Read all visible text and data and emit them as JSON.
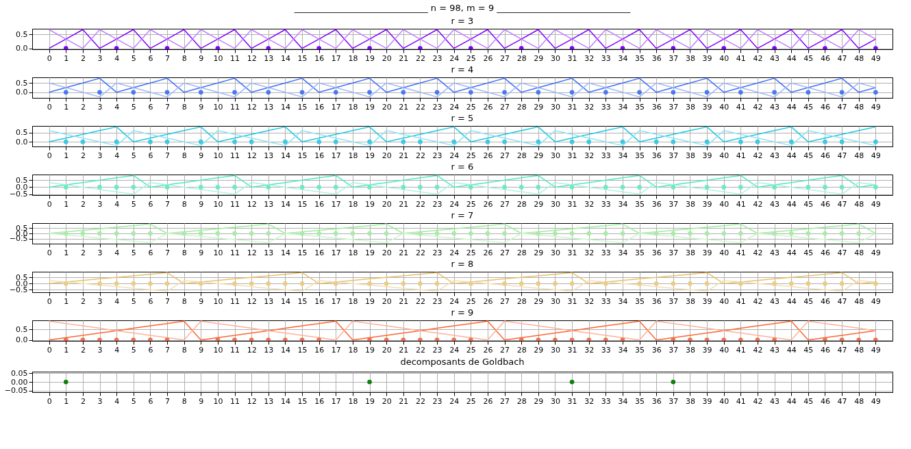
{
  "chart_data": [
    {
      "type": "line",
      "title": "______________________________ n = 98, m = 9 ______________________________",
      "subtitle": "r = 3",
      "grid": true,
      "x": [
        0,
        1,
        2,
        3,
        4,
        5,
        6,
        7,
        8,
        9,
        10,
        11,
        12,
        13,
        14,
        15,
        16,
        17,
        18,
        19,
        20,
        21,
        22,
        23,
        24,
        25,
        26,
        27,
        28,
        29,
        30,
        31,
        32,
        33,
        34,
        35,
        36,
        37,
        38,
        39,
        40,
        41,
        42,
        43,
        44,
        45,
        46,
        47,
        48,
        49
      ],
      "xlim": [
        -1,
        50
      ],
      "xticks": [
        0,
        1,
        2,
        3,
        4,
        5,
        6,
        7,
        8,
        9,
        10,
        11,
        12,
        13,
        14,
        15,
        16,
        17,
        18,
        19,
        20,
        21,
        22,
        23,
        24,
        25,
        26,
        27,
        28,
        29,
        30,
        31,
        32,
        33,
        34,
        35,
        36,
        37,
        38,
        39,
        40,
        41,
        42,
        43,
        44,
        45,
        46,
        47,
        48,
        49
      ],
      "ylim": [
        -0.033,
        0.7
      ],
      "yticks": [
        {
          "value": 0,
          "label": "0.0"
        },
        {
          "value": 0.5,
          "label": "0.5"
        }
      ],
      "series": [
        {
          "type": "line",
          "color": "#8000ff",
          "values": [
            0,
            0.33,
            0.67,
            0,
            0.33,
            0.67,
            0,
            0.33,
            0.67,
            0,
            0.33,
            0.67,
            0,
            0.33,
            0.67,
            0,
            0.33,
            0.67,
            0,
            0.33,
            0.67,
            0,
            0.33,
            0.67,
            0,
            0.33,
            0.67,
            0,
            0.33,
            0.67,
            0,
            0.33,
            0.67,
            0,
            0.33,
            0.67,
            0,
            0.33,
            0.67,
            0,
            0.33,
            0.67,
            0,
            0.33,
            0.67,
            0,
            0.33,
            0.67,
            0,
            0.33
          ]
        },
        {
          "type": "line",
          "color": "#c080ff",
          "values": [
            0.67,
            0.33,
            0,
            0.67,
            0.33,
            0,
            0.67,
            0.33,
            0,
            0.67,
            0.33,
            0,
            0.67,
            0.33,
            0,
            0.67,
            0.33,
            0,
            0.67,
            0.33,
            0,
            0.67,
            0.33,
            0,
            0.67,
            0.33,
            0,
            0.67,
            0.33,
            0,
            0.67,
            0.33,
            0,
            0.67,
            0.33,
            0,
            0.67,
            0.33,
            0,
            0.67,
            0.33,
            0,
            0.67,
            0.33,
            0,
            0.67,
            0.33,
            0,
            0.67,
            0.33
          ]
        },
        {
          "type": "scatter",
          "marker": "circle",
          "color": "#8000ff",
          "x": [
            1,
            4,
            7,
            10,
            13,
            16,
            19,
            22,
            25,
            28,
            31,
            34,
            37,
            40,
            43,
            46,
            49
          ],
          "values": [
            0,
            0,
            0,
            0,
            0,
            0,
            0,
            0,
            0,
            0,
            0,
            0,
            0,
            0,
            0,
            0,
            0
          ]
        }
      ]
    },
    {
      "type": "line",
      "title": "r = 4",
      "grid": true,
      "x": [
        0,
        1,
        2,
        3,
        4,
        5,
        6,
        7,
        8,
        9,
        10,
        11,
        12,
        13,
        14,
        15,
        16,
        17,
        18,
        19,
        20,
        21,
        22,
        23,
        24,
        25,
        26,
        27,
        28,
        29,
        30,
        31,
        32,
        33,
        34,
        35,
        36,
        37,
        38,
        39,
        40,
        41,
        42,
        43,
        44,
        45,
        46,
        47,
        48,
        49
      ],
      "xlim": [
        -1,
        50
      ],
      "xticks": [
        0,
        1,
        2,
        3,
        4,
        5,
        6,
        7,
        8,
        9,
        10,
        11,
        12,
        13,
        14,
        15,
        16,
        17,
        18,
        19,
        20,
        21,
        22,
        23,
        24,
        25,
        26,
        27,
        28,
        29,
        30,
        31,
        32,
        33,
        34,
        35,
        36,
        37,
        38,
        39,
        40,
        41,
        42,
        43,
        44,
        45,
        46,
        47,
        48,
        49
      ],
      "ylim": [
        -0.3,
        0.8
      ],
      "yticks": [
        {
          "value": 0,
          "label": "0.0"
        },
        {
          "value": 0.5,
          "label": "0.5"
        }
      ],
      "series": [
        {
          "type": "line",
          "color": "#4070f8",
          "values": [
            0,
            0.25,
            0.5,
            0.75,
            0,
            0.25,
            0.5,
            0.75,
            0,
            0.25,
            0.5,
            0.75,
            0,
            0.25,
            0.5,
            0.75,
            0,
            0.25,
            0.5,
            0.75,
            0,
            0.25,
            0.5,
            0.75,
            0,
            0.25,
            0.5,
            0.75,
            0,
            0.25,
            0.5,
            0.75,
            0,
            0.25,
            0.5,
            0.75,
            0,
            0.25,
            0.5,
            0.75,
            0,
            0.25,
            0.5,
            0.75,
            0,
            0.25,
            0.5,
            0.75,
            0,
            0.25
          ]
        },
        {
          "type": "line",
          "color": "#a0b8fb",
          "values": [
            0.5,
            0.25,
            0,
            -0.25,
            0.5,
            0.25,
            0,
            -0.25,
            0.5,
            0.25,
            0,
            -0.25,
            0.5,
            0.25,
            0,
            -0.25,
            0.5,
            0.25,
            0,
            -0.25,
            0.5,
            0.25,
            0,
            -0.25,
            0.5,
            0.25,
            0,
            -0.25,
            0.5,
            0.25,
            0,
            -0.25,
            0.5,
            0.25,
            0,
            -0.25,
            0.5,
            0.25,
            0,
            -0.25,
            0.5,
            0.25,
            0,
            -0.25,
            0.5,
            0.25,
            0,
            -0.25,
            0.5,
            0.25
          ]
        },
        {
          "type": "scatter",
          "marker": "circle",
          "color": "#4a78f0",
          "x": [
            1,
            3,
            5,
            7,
            9,
            11,
            13,
            15,
            17,
            19,
            21,
            23,
            25,
            27,
            29,
            31,
            33,
            35,
            37,
            39,
            41,
            43,
            45,
            47,
            49
          ],
          "values": [
            0,
            0,
            0,
            0,
            0,
            0,
            0,
            0,
            0,
            0,
            0,
            0,
            0,
            0,
            0,
            0,
            0,
            0,
            0,
            0,
            0,
            0,
            0,
            0,
            0
          ]
        }
      ]
    },
    {
      "type": "line",
      "title": "r = 5",
      "grid": true,
      "x": [
        0,
        1,
        2,
        3,
        4,
        5,
        6,
        7,
        8,
        9,
        10,
        11,
        12,
        13,
        14,
        15,
        16,
        17,
        18,
        19,
        20,
        21,
        22,
        23,
        24,
        25,
        26,
        27,
        28,
        29,
        30,
        31,
        32,
        33,
        34,
        35,
        36,
        37,
        38,
        39,
        40,
        41,
        42,
        43,
        44,
        45,
        46,
        47,
        48,
        49
      ],
      "xlim": [
        -1,
        50
      ],
      "xticks": [
        0,
        1,
        2,
        3,
        4,
        5,
        6,
        7,
        8,
        9,
        10,
        11,
        12,
        13,
        14,
        15,
        16,
        17,
        18,
        19,
        20,
        21,
        22,
        23,
        24,
        25,
        26,
        27,
        28,
        29,
        30,
        31,
        32,
        33,
        34,
        35,
        36,
        37,
        38,
        39,
        40,
        41,
        42,
        43,
        44,
        45,
        46,
        47,
        48,
        49
      ],
      "ylim": [
        -0.25,
        0.85
      ],
      "yticks": [
        {
          "value": 0,
          "label": "0.0"
        },
        {
          "value": 0.5,
          "label": "0.5"
        }
      ],
      "series": [
        {
          "type": "line",
          "color": "#1ec8e0",
          "values": [
            0,
            0.2,
            0.4,
            0.6,
            0.8,
            0,
            0.2,
            0.4,
            0.6,
            0.8,
            0,
            0.2,
            0.4,
            0.6,
            0.8,
            0,
            0.2,
            0.4,
            0.6,
            0.8,
            0,
            0.2,
            0.4,
            0.6,
            0.8,
            0,
            0.2,
            0.4,
            0.6,
            0.8,
            0,
            0.2,
            0.4,
            0.6,
            0.8,
            0,
            0.2,
            0.4,
            0.6,
            0.8,
            0,
            0.2,
            0.4,
            0.6,
            0.8,
            0,
            0.2,
            0.4,
            0.6,
            0.8
          ]
        },
        {
          "type": "line",
          "color": "#90e4f0",
          "values": [
            0.6,
            0.4,
            0.2,
            0,
            -0.2,
            0.6,
            0.4,
            0.2,
            0,
            -0.2,
            0.6,
            0.4,
            0.2,
            0,
            -0.2,
            0.6,
            0.4,
            0.2,
            0,
            -0.2,
            0.6,
            0.4,
            0.2,
            0,
            -0.2,
            0.6,
            0.4,
            0.2,
            0,
            -0.2,
            0.6,
            0.4,
            0.2,
            0,
            -0.2,
            0.6,
            0.4,
            0.2,
            0,
            -0.2,
            0.6,
            0.4,
            0.2,
            0,
            -0.2,
            0.6,
            0.4,
            0.2,
            0,
            -0.2
          ]
        },
        {
          "type": "scatter",
          "marker": "circle",
          "color": "#40c8e0",
          "x": [
            1,
            2,
            4,
            6,
            7,
            9,
            11,
            12,
            14,
            16,
            17,
            19,
            21,
            22,
            24,
            26,
            27,
            29,
            31,
            32,
            34,
            36,
            37,
            39,
            41,
            42,
            44,
            46,
            47,
            49
          ],
          "values": [
            0,
            0,
            0,
            0,
            0,
            0,
            0,
            0,
            0,
            0,
            0,
            0,
            0,
            0,
            0,
            0,
            0,
            0,
            0,
            0,
            0,
            0,
            0,
            0,
            0,
            0,
            0,
            0,
            0,
            0
          ]
        }
      ]
    },
    {
      "type": "line",
      "title": "r = 6",
      "grid": true,
      "x": [
        0,
        1,
        2,
        3,
        4,
        5,
        6,
        7,
        8,
        9,
        10,
        11,
        12,
        13,
        14,
        15,
        16,
        17,
        18,
        19,
        20,
        21,
        22,
        23,
        24,
        25,
        26,
        27,
        28,
        29,
        30,
        31,
        32,
        33,
        34,
        35,
        36,
        37,
        38,
        39,
        40,
        41,
        42,
        43,
        44,
        45,
        46,
        47,
        48,
        49
      ],
      "xlim": [
        -1,
        50
      ],
      "xticks": [
        0,
        1,
        2,
        3,
        4,
        5,
        6,
        7,
        8,
        9,
        10,
        11,
        12,
        13,
        14,
        15,
        16,
        17,
        18,
        19,
        20,
        21,
        22,
        23,
        24,
        25,
        26,
        27,
        28,
        29,
        30,
        31,
        32,
        33,
        34,
        35,
        36,
        37,
        38,
        39,
        40,
        41,
        42,
        43,
        44,
        45,
        46,
        47,
        48,
        49
      ],
      "ylim": [
        -0.567,
        0.9
      ],
      "yticks": [
        {
          "value": -0.5,
          "label": "−0.5"
        },
        {
          "value": 0,
          "label": "0.0"
        },
        {
          "value": 0.5,
          "label": "0.5"
        }
      ],
      "series": [
        {
          "type": "line",
          "color": "#50e8c0",
          "values": [
            0,
            0.17,
            0.33,
            0.5,
            0.67,
            0.83,
            0,
            0.17,
            0.33,
            0.5,
            0.67,
            0.83,
            0,
            0.17,
            0.33,
            0.5,
            0.67,
            0.83,
            0,
            0.17,
            0.33,
            0.5,
            0.67,
            0.83,
            0,
            0.17,
            0.33,
            0.5,
            0.67,
            0.83,
            0,
            0.17,
            0.33,
            0.5,
            0.67,
            0.83,
            0,
            0.17,
            0.33,
            0.5,
            0.67,
            0.83,
            0,
            0.17,
            0.33,
            0.5,
            0.67,
            0.83,
            0,
            0.17
          ]
        },
        {
          "type": "line",
          "color": "#a8f4e0",
          "values": [
            0.33,
            0.17,
            0,
            -0.17,
            -0.33,
            -0.5,
            0.33,
            0.17,
            0,
            -0.17,
            -0.33,
            -0.5,
            0.33,
            0.17,
            0,
            -0.17,
            -0.33,
            -0.5,
            0.33,
            0.17,
            0,
            -0.17,
            -0.33,
            -0.5,
            0.33,
            0.17,
            0,
            -0.17,
            -0.33,
            -0.5,
            0.33,
            0.17,
            0,
            -0.17,
            -0.33,
            -0.5,
            0.33,
            0.17,
            0,
            -0.17,
            -0.33,
            -0.5,
            0.33,
            0.17,
            0,
            -0.17,
            -0.33,
            -0.5,
            0.33,
            0.17
          ]
        },
        {
          "type": "scatter",
          "marker": "circle",
          "color": "#70e8c8",
          "x": [
            1,
            3,
            4,
            5,
            7,
            9,
            10,
            11,
            13,
            15,
            16,
            17,
            19,
            21,
            22,
            23,
            25,
            27,
            28,
            29,
            31,
            33,
            34,
            35,
            37,
            39,
            40,
            41,
            43,
            45,
            46,
            47,
            49
          ],
          "values": [
            0,
            0,
            0,
            0,
            0,
            0,
            0,
            0,
            0,
            0,
            0,
            0,
            0,
            0,
            0,
            0,
            0,
            0,
            0,
            0,
            0,
            0,
            0,
            0,
            0,
            0,
            0,
            0,
            0,
            0,
            0,
            0,
            0
          ]
        }
      ]
    },
    {
      "type": "line",
      "title": "r = 7",
      "grid": true,
      "x": [
        0,
        1,
        2,
        3,
        4,
        5,
        6,
        7,
        8,
        9,
        10,
        11,
        12,
        13,
        14,
        15,
        16,
        17,
        18,
        19,
        20,
        21,
        22,
        23,
        24,
        25,
        26,
        27,
        28,
        29,
        30,
        31,
        32,
        33,
        34,
        35,
        36,
        37,
        38,
        39,
        40,
        41,
        42,
        43,
        44,
        45,
        46,
        47,
        48,
        49
      ],
      "xlim": [
        -1,
        50
      ],
      "xticks": [
        0,
        1,
        2,
        3,
        4,
        5,
        6,
        7,
        8,
        9,
        10,
        11,
        12,
        13,
        14,
        15,
        16,
        17,
        18,
        19,
        20,
        21,
        22,
        23,
        24,
        25,
        26,
        27,
        28,
        29,
        30,
        31,
        32,
        33,
        34,
        35,
        36,
        37,
        38,
        39,
        40,
        41,
        42,
        43,
        44,
        45,
        46,
        47,
        48,
        49
      ],
      "ylim": [
        -0.943,
        0.943
      ],
      "yticks": [
        {
          "value": -0.5,
          "label": "−0.5"
        },
        {
          "value": 0,
          "label": "0.0"
        },
        {
          "value": 0.5,
          "label": "0.5"
        }
      ],
      "series": [
        {
          "type": "line",
          "color": "#98ee98",
          "values": [
            0,
            0.14,
            0.29,
            0.43,
            0.57,
            0.71,
            0.86,
            0,
            0.14,
            0.29,
            0.43,
            0.57,
            0.71,
            0.86,
            0,
            0.14,
            0.29,
            0.43,
            0.57,
            0.71,
            0.86,
            0,
            0.14,
            0.29,
            0.43,
            0.57,
            0.71,
            0.86,
            0,
            0.14,
            0.29,
            0.43,
            0.57,
            0.71,
            0.86,
            0,
            0.14,
            0.29,
            0.43,
            0.57,
            0.71,
            0.86,
            0,
            0.14,
            0.29,
            0.43,
            0.57,
            0.71,
            0.86,
            0
          ]
        },
        {
          "type": "line",
          "color": "#ccf8cc",
          "values": [
            0,
            -0.14,
            -0.29,
            -0.43,
            -0.57,
            -0.71,
            -0.86,
            0,
            -0.14,
            -0.29,
            -0.43,
            -0.57,
            -0.71,
            -0.86,
            0,
            -0.14,
            -0.29,
            -0.43,
            -0.57,
            -0.71,
            -0.86,
            0,
            -0.14,
            -0.29,
            -0.43,
            -0.57,
            -0.71,
            -0.86,
            0,
            -0.14,
            -0.29,
            -0.43,
            -0.57,
            -0.71,
            -0.86,
            0,
            -0.14,
            -0.29,
            -0.43,
            -0.57,
            -0.71,
            -0.86,
            0,
            -0.14,
            -0.29,
            -0.43,
            -0.57,
            -0.71,
            -0.86,
            0
          ]
        },
        {
          "type": "scatter",
          "marker": "circle",
          "color": "#a8eca8",
          "x": [
            1,
            2,
            3,
            4,
            5,
            6,
            8,
            9,
            10,
            11,
            12,
            13,
            15,
            16,
            17,
            18,
            19,
            20,
            22,
            23,
            24,
            25,
            26,
            27,
            29,
            30,
            31,
            32,
            33,
            34,
            36,
            37,
            38,
            39,
            40,
            41,
            43,
            44,
            45,
            46,
            47,
            48
          ],
          "values": [
            0,
            0,
            0,
            0,
            0,
            0,
            0,
            0,
            0,
            0,
            0,
            0,
            0,
            0,
            0,
            0,
            0,
            0,
            0,
            0,
            0,
            0,
            0,
            0,
            0,
            0,
            0,
            0,
            0,
            0,
            0,
            0,
            0,
            0,
            0,
            0,
            0,
            0,
            0,
            0,
            0,
            0
          ]
        }
      ]
    },
    {
      "type": "line",
      "title": "r = 8",
      "grid": true,
      "x": [
        0,
        1,
        2,
        3,
        4,
        5,
        6,
        7,
        8,
        9,
        10,
        11,
        12,
        13,
        14,
        15,
        16,
        17,
        18,
        19,
        20,
        21,
        22,
        23,
        24,
        25,
        26,
        27,
        28,
        29,
        30,
        31,
        32,
        33,
        34,
        35,
        36,
        37,
        38,
        39,
        40,
        41,
        42,
        43,
        44,
        45,
        46,
        47,
        48,
        49
      ],
      "xlim": [
        -1,
        50
      ],
      "xticks": [
        0,
        1,
        2,
        3,
        4,
        5,
        6,
        7,
        8,
        9,
        10,
        11,
        12,
        13,
        14,
        15,
        16,
        17,
        18,
        19,
        20,
        21,
        22,
        23,
        24,
        25,
        26,
        27,
        28,
        29,
        30,
        31,
        32,
        33,
        34,
        35,
        36,
        37,
        38,
        39,
        40,
        41,
        42,
        43,
        44,
        45,
        46,
        47,
        48,
        49
      ],
      "ylim": [
        -0.7,
        0.95
      ],
      "yticks": [
        {
          "value": -0.5,
          "label": "−0.5"
        },
        {
          "value": 0,
          "label": "0.0"
        },
        {
          "value": 0.5,
          "label": "0.5"
        }
      ],
      "series": [
        {
          "type": "line",
          "color": "#e8c068",
          "values": [
            0,
            0.12,
            0.25,
            0.38,
            0.5,
            0.62,
            0.75,
            0.88,
            0,
            0.12,
            0.25,
            0.38,
            0.5,
            0.62,
            0.75,
            0.88,
            0,
            0.12,
            0.25,
            0.38,
            0.5,
            0.62,
            0.75,
            0.88,
            0,
            0.12,
            0.25,
            0.38,
            0.5,
            0.62,
            0.75,
            0.88,
            0,
            0.12,
            0.25,
            0.38,
            0.5,
            0.62,
            0.75,
            0.88,
            0,
            0.12,
            0.25,
            0.38,
            0.5,
            0.62,
            0.75,
            0.88,
            0,
            0.12
          ]
        },
        {
          "type": "line",
          "color": "#f4e0b4",
          "values": [
            0.25,
            0.12,
            0,
            -0.12,
            -0.25,
            -0.38,
            -0.5,
            -0.62,
            0.25,
            0.12,
            0,
            -0.12,
            -0.25,
            -0.38,
            -0.5,
            -0.62,
            0.25,
            0.12,
            0,
            -0.12,
            -0.25,
            -0.38,
            -0.5,
            -0.62,
            0.25,
            0.12,
            0,
            -0.12,
            -0.25,
            -0.38,
            -0.5,
            -0.62,
            0.25,
            0.12,
            0,
            -0.12,
            -0.25,
            -0.38,
            -0.5,
            -0.62,
            0.25,
            0.12,
            0,
            -0.12,
            -0.25,
            -0.38,
            -0.5,
            -0.62,
            0.25,
            0.12
          ]
        },
        {
          "type": "scatter",
          "marker": "circle",
          "color": "#eccc80",
          "x": [
            1,
            3,
            4,
            5,
            6,
            7,
            9,
            11,
            12,
            13,
            14,
            15,
            17,
            19,
            20,
            21,
            22,
            23,
            25,
            27,
            28,
            29,
            30,
            31,
            33,
            35,
            36,
            37,
            38,
            39,
            41,
            43,
            44,
            45,
            46,
            47,
            49
          ],
          "values": [
            0,
            0,
            0,
            0,
            0,
            0,
            0,
            0,
            0,
            0,
            0,
            0,
            0,
            0,
            0,
            0,
            0,
            0,
            0,
            0,
            0,
            0,
            0,
            0,
            0,
            0,
            0,
            0,
            0,
            0,
            0,
            0,
            0,
            0,
            0,
            0,
            0
          ]
        }
      ]
    },
    {
      "type": "line",
      "title": "r = 9",
      "grid": true,
      "x": [
        0,
        1,
        2,
        3,
        4,
        5,
        6,
        7,
        8,
        9,
        10,
        11,
        12,
        13,
        14,
        15,
        16,
        17,
        18,
        19,
        20,
        21,
        22,
        23,
        24,
        25,
        26,
        27,
        28,
        29,
        30,
        31,
        32,
        33,
        34,
        35,
        36,
        37,
        38,
        39,
        40,
        41,
        42,
        43,
        44,
        45,
        46,
        47,
        48,
        49
      ],
      "xlim": [
        -1,
        50
      ],
      "xticks": [
        0,
        1,
        2,
        3,
        4,
        5,
        6,
        7,
        8,
        9,
        10,
        11,
        12,
        13,
        14,
        15,
        16,
        17,
        18,
        19,
        20,
        21,
        22,
        23,
        24,
        25,
        26,
        27,
        28,
        29,
        30,
        31,
        32,
        33,
        34,
        35,
        36,
        37,
        38,
        39,
        40,
        41,
        42,
        43,
        44,
        45,
        46,
        47,
        48,
        49
      ],
      "ylim": [
        -0.044,
        0.933
      ],
      "yticks": [
        {
          "value": 0,
          "label": "0.0"
        },
        {
          "value": 0.5,
          "label": "0.5"
        }
      ],
      "series": [
        {
          "type": "line",
          "color": "#ff6430",
          "values": [
            0,
            0.11,
            0.22,
            0.33,
            0.44,
            0.56,
            0.67,
            0.78,
            0.89,
            0,
            0.11,
            0.22,
            0.33,
            0.44,
            0.56,
            0.67,
            0.78,
            0.89,
            0,
            0.11,
            0.22,
            0.33,
            0.44,
            0.56,
            0.67,
            0.78,
            0.89,
            0,
            0.11,
            0.22,
            0.33,
            0.44,
            0.56,
            0.67,
            0.78,
            0.89,
            0,
            0.11,
            0.22,
            0.33,
            0.44,
            0.56,
            0.67,
            0.78,
            0.89,
            0,
            0.11,
            0.22,
            0.33,
            0.44
          ]
        },
        {
          "type": "line",
          "color": "#ffb098",
          "values": [
            0.89,
            0.78,
            0.67,
            0.56,
            0.44,
            0.33,
            0.22,
            0.11,
            0,
            0.89,
            0.78,
            0.67,
            0.56,
            0.44,
            0.33,
            0.22,
            0.11,
            0,
            0.89,
            0.78,
            0.67,
            0.56,
            0.44,
            0.33,
            0.22,
            0.11,
            0,
            0.89,
            0.78,
            0.67,
            0.56,
            0.44,
            0.33,
            0.22,
            0.11,
            0,
            0.89,
            0.78,
            0.67,
            0.56,
            0.44,
            0.33,
            0.22,
            0.11,
            0,
            0.89,
            0.78,
            0.67,
            0.56,
            0.44
          ]
        },
        {
          "type": "scatter",
          "marker": "circle",
          "color": "#f07050",
          "x": [
            1,
            2,
            3,
            4,
            5,
            6,
            7,
            10,
            11,
            12,
            13,
            14,
            15,
            16,
            19,
            20,
            21,
            22,
            23,
            24,
            25,
            28,
            29,
            30,
            31,
            32,
            33,
            34,
            37,
            38,
            39,
            40,
            41,
            42,
            43,
            46,
            47,
            48,
            49
          ],
          "values": [
            0,
            0,
            0,
            0,
            0,
            0,
            0,
            0,
            0,
            0,
            0,
            0,
            0,
            0,
            0,
            0,
            0,
            0,
            0,
            0,
            0,
            0,
            0,
            0,
            0,
            0,
            0,
            0,
            0,
            0,
            0,
            0,
            0,
            0,
            0,
            0,
            0,
            0,
            0
          ]
        }
      ]
    },
    {
      "type": "scatter",
      "title": "decomposants de Goldbach",
      "grid": true,
      "marker": "circle",
      "x": [
        1,
        19,
        31,
        37
      ],
      "values": [
        0,
        0,
        0,
        0
      ],
      "color": "#108010",
      "xlim": [
        -1,
        50
      ],
      "xticks": [
        0,
        1,
        2,
        3,
        4,
        5,
        6,
        7,
        8,
        9,
        10,
        11,
        12,
        13,
        14,
        15,
        16,
        17,
        18,
        19,
        20,
        21,
        22,
        23,
        24,
        25,
        26,
        27,
        28,
        29,
        30,
        31,
        32,
        33,
        34,
        35,
        36,
        37,
        38,
        39,
        40,
        41,
        42,
        43,
        44,
        45,
        46,
        47,
        48,
        49
      ],
      "ylim": [
        -0.06,
        0.06
      ],
      "yticks": [
        {
          "value": -0.05,
          "label": "−0.05"
        },
        {
          "value": 0,
          "label": "0.00"
        },
        {
          "value": 0.05,
          "label": "0.05"
        }
      ]
    }
  ]
}
